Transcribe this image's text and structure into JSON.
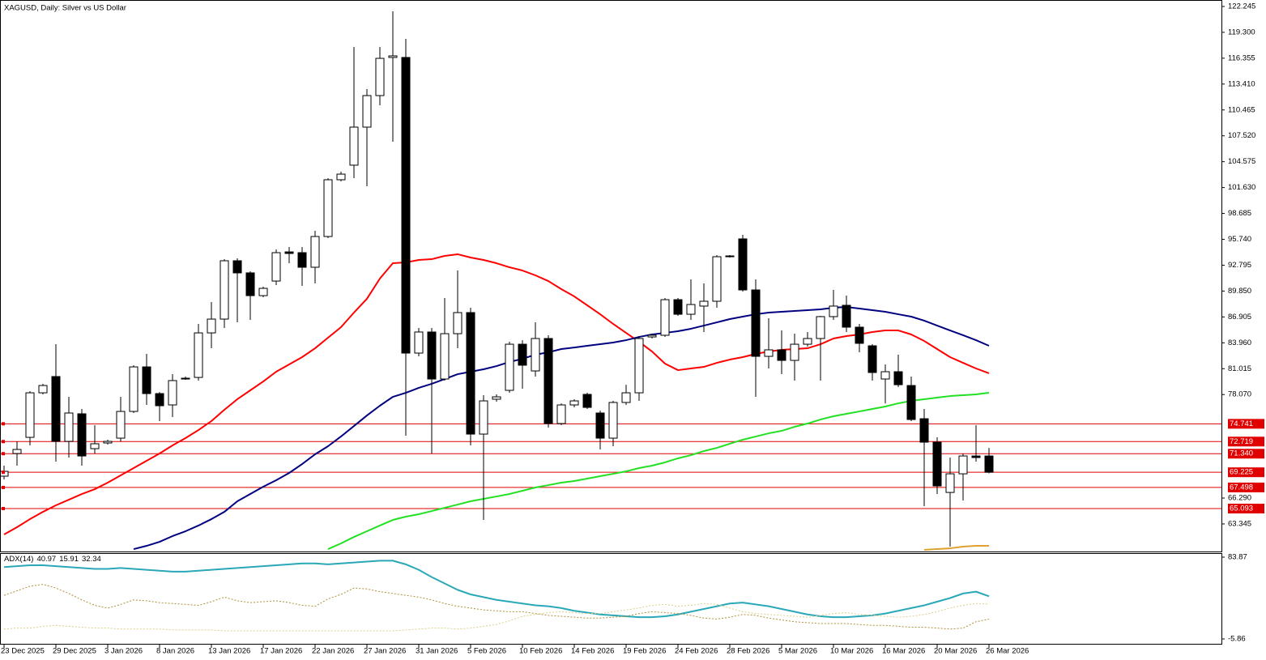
{
  "chart_data": [
    {
      "type": "candlestick",
      "title": "XAGUSD, Daily:  Silver vs US Dollar",
      "categories": [
        "23 Dec 2025",
        null,
        null,
        null,
        "29 Dec 2025",
        null,
        null,
        null,
        "3 Jan 2026",
        null,
        null,
        null,
        "8 Jan 2026",
        null,
        null,
        null,
        "13 Jan 2026",
        null,
        null,
        null,
        "17 Jan 2026",
        null,
        null,
        null,
        "22 Jan 2026",
        null,
        null,
        null,
        "27 Jan 2026",
        null,
        null,
        null,
        "31 Jan 2026",
        null,
        null,
        null,
        "5 Feb 2026",
        null,
        null,
        null,
        "10 Feb 2026",
        null,
        null,
        null,
        "14 Feb 2026",
        null,
        null,
        null,
        "19 Feb 2026",
        null,
        null,
        null,
        "24 Feb 2026",
        null,
        null,
        null,
        "28 Feb 2026",
        null,
        null,
        null,
        "5 Mar 2026",
        null,
        null,
        null,
        "10 Mar 2026",
        null,
        null,
        null,
        "16 Mar 2026",
        null,
        null,
        null,
        "20 Mar 2026",
        null,
        null,
        null,
        "26 Mar 2026"
      ],
      "open": [
        68.78,
        71.36,
        73.2,
        78.27,
        80.12,
        72.74,
        75.88,
        71.91,
        72.56,
        73.11,
        76.15,
        81.22,
        78.18,
        76.89,
        79.84,
        80.02,
        85.09,
        86.66,
        93.3,
        91.92,
        89.33,
        90.99,
        94.31,
        94.22,
        92.56,
        96.06,
        102.52,
        104.18,
        108.51,
        112.1,
        116.44,
        116.44,
        82.79,
        85.19,
        79.84,
        85.0,
        87.4,
        73.57,
        77.54,
        78.55,
        83.8,
        80.76,
        84.45,
        74.77,
        76.89,
        78.09,
        75.97,
        73.11,
        77.17,
        78.27,
        84.63,
        84.82,
        88.87,
        87.21,
        88.14,
        88.69,
        93.85,
        95.79,
        89.98,
        82.42,
        83.16,
        81.96,
        83.8,
        84.45,
        86.94,
        88.23,
        85.74,
        83.62,
        79.84,
        80.67,
        79.1,
        75.32,
        72.65,
        66.93,
        69.05,
        71.08,
        71.08
      ],
      "high": [
        69.98,
        72.74,
        78.46,
        79.29,
        83.8,
        77.81,
        76.43,
        74.59,
        72.93,
        77.81,
        81.41,
        82.7,
        78.36,
        80.39,
        80.12,
        86.11,
        88.6,
        93.48,
        93.58,
        92.1,
        90.35,
        94.59,
        94.87,
        94.87,
        96.71,
        102.7,
        103.44,
        117.63,
        112.84,
        117.63,
        121.69,
        118.56,
        85.65,
        85.65,
        89.06,
        92.19,
        87.95,
        78.0,
        78.09,
        84.08,
        84.26,
        86.29,
        84.82,
        77.07,
        77.54,
        78.27,
        76.24,
        77.35,
        79.19,
        84.73,
        85.0,
        89.06,
        89.06,
        91.18,
        90.72,
        93.94,
        93.94,
        96.25,
        91.18,
        86.75,
        85.37,
        85.0,
        85.19,
        87.03,
        89.98,
        89.33,
        86.11,
        83.8,
        81.5,
        82.61,
        80.12,
        76.43,
        73.2,
        70.9,
        71.36,
        74.59,
        72.0
      ],
      "low": [
        68.41,
        69.98,
        72.28,
        78.09,
        70.44,
        70.9,
        69.98,
        71.36,
        72.37,
        72.74,
        75.97,
        76.89,
        75.05,
        75.51,
        79.75,
        79.66,
        83.34,
        85.65,
        86.29,
        86.57,
        89.15,
        90.53,
        93.02,
        90.44,
        90.72,
        95.88,
        102.33,
        102.7,
        101.78,
        111.0,
        106.85,
        73.39,
        82.42,
        71.36,
        79.66,
        83.34,
        72.28,
        63.8,
        77.26,
        78.27,
        78.73,
        80.12,
        74.31,
        74.59,
        76.61,
        76.43,
        71.82,
        72.19,
        76.89,
        77.35,
        84.45,
        84.63,
        87.03,
        86.57,
        85.19,
        87.95,
        93.67,
        89.8,
        77.81,
        81.04,
        80.39,
        79.66,
        83.53,
        79.66,
        86.57,
        85.19,
        82.88,
        79.66,
        77.07,
        78.92,
        75.05,
        65.37,
        66.75,
        60.76,
        66.01,
        70.44,
        69.1
      ],
      "close": [
        69.33,
        71.82,
        78.27,
        79.1,
        72.74,
        75.97,
        71.08,
        72.47,
        72.74,
        76.15,
        81.22,
        78.18,
        76.8,
        79.66,
        79.93,
        85.09,
        86.66,
        93.3,
        91.92,
        89.33,
        90.16,
        94.22,
        94.13,
        92.56,
        96.06,
        102.52,
        103.16,
        108.51,
        112.1,
        116.34,
        116.62,
        82.79,
        85.19,
        79.84,
        85.0,
        87.4,
        73.57,
        77.35,
        77.81,
        83.8,
        81.41,
        84.45,
        74.77,
        76.89,
        77.35,
        76.61,
        73.11,
        77.17,
        78.27,
        84.45,
        84.82,
        88.87,
        87.21,
        88.32,
        88.69,
        93.76,
        93.76,
        89.98,
        82.42,
        83.16,
        81.96,
        83.8,
        84.45,
        86.94,
        88.14,
        85.74,
        83.9,
        80.58,
        80.67,
        79.19,
        75.23,
        72.65,
        67.67,
        69.05,
        71.08,
        70.9,
        69.23
      ],
      "up_color": "#ffffff",
      "down_color": "#000000",
      "wick_color": "#000000",
      "lines": [
        {
          "color": "#ff0000",
          "values": [
            62.14,
            62.97,
            63.89,
            64.72,
            65.46,
            66.1,
            66.75,
            67.3,
            68.04,
            68.87,
            69.7,
            70.53,
            71.36,
            72.28,
            73.11,
            74.03,
            75.05,
            76.34,
            77.54,
            78.55,
            79.56,
            80.67,
            81.5,
            82.33,
            83.34,
            84.54,
            85.74,
            87.4,
            88.97,
            91.27,
            93.02,
            93.11,
            93.39,
            93.48,
            93.85,
            94.04,
            93.67,
            93.39,
            93.02,
            92.56,
            92.19,
            91.64,
            90.99,
            90.07,
            89.24,
            88.23,
            87.21,
            86.11,
            85.09,
            84.08,
            82.97,
            81.59,
            80.85,
            81.04,
            81.22,
            81.68,
            82.05,
            82.33,
            82.7,
            82.97,
            83.16,
            83.25,
            83.34,
            83.8,
            84.45,
            84.73,
            84.91,
            85.19,
            85.37,
            85.37,
            84.91,
            84.17,
            83.25,
            82.33,
            81.68,
            81.04,
            80.49
          ]
        },
        {
          "color": "#000080",
          "values": [
            null,
            null,
            null,
            null,
            null,
            null,
            null,
            null,
            null,
            null,
            60.48,
            60.85,
            61.31,
            61.96,
            62.51,
            63.16,
            63.89,
            64.72,
            65.92,
            66.75,
            67.58,
            68.32,
            69.15,
            70.16,
            71.27,
            72.19,
            73.3,
            74.49,
            75.69,
            76.8,
            77.81,
            78.27,
            78.83,
            79.29,
            79.84,
            80.39,
            80.67,
            80.95,
            81.31,
            81.78,
            82.14,
            82.61,
            82.88,
            83.25,
            83.43,
            83.62,
            83.8,
            83.99,
            84.26,
            84.63,
            84.91,
            85.09,
            85.28,
            85.56,
            85.92,
            86.29,
            86.66,
            86.94,
            87.21,
            87.4,
            87.49,
            87.58,
            87.68,
            87.77,
            87.95,
            88.04,
            87.86,
            87.68,
            87.49,
            87.21,
            86.94,
            86.48,
            85.92,
            85.37,
            84.82,
            84.26,
            83.62
          ]
        },
        {
          "color": "#22e022",
          "values": [
            null,
            null,
            null,
            null,
            null,
            null,
            null,
            null,
            null,
            null,
            null,
            null,
            null,
            null,
            null,
            null,
            null,
            null,
            null,
            null,
            null,
            null,
            null,
            null,
            null,
            60.48,
            61.13,
            61.86,
            62.51,
            63.16,
            63.8,
            64.17,
            64.45,
            64.81,
            65.18,
            65.55,
            65.92,
            66.2,
            66.47,
            66.75,
            67.12,
            67.49,
            67.76,
            68.04,
            68.23,
            68.5,
            68.78,
            69.05,
            69.33,
            69.7,
            69.98,
            70.35,
            70.81,
            71.17,
            71.64,
            72.0,
            72.47,
            72.93,
            73.29,
            73.66,
            73.94,
            74.4,
            74.77,
            75.23,
            75.6,
            75.88,
            76.15,
            76.43,
            76.71,
            77.07,
            77.35,
            77.54,
            77.72,
            77.9,
            78.0,
            78.09,
            78.27
          ]
        },
        {
          "color": "#e0a030",
          "values": [
            null,
            null,
            null,
            null,
            null,
            null,
            null,
            null,
            null,
            null,
            null,
            null,
            null,
            null,
            null,
            null,
            null,
            null,
            null,
            null,
            null,
            null,
            null,
            null,
            null,
            null,
            null,
            null,
            null,
            null,
            null,
            null,
            null,
            null,
            null,
            null,
            null,
            null,
            null,
            null,
            null,
            null,
            null,
            null,
            null,
            null,
            null,
            null,
            null,
            null,
            null,
            null,
            null,
            null,
            null,
            null,
            null,
            null,
            null,
            null,
            null,
            null,
            null,
            null,
            null,
            null,
            null,
            null,
            null,
            null,
            null,
            60.39,
            60.48,
            60.57,
            60.76,
            60.85,
            60.85
          ]
        }
      ],
      "hlines": [
        74.741,
        72.719,
        {
          "value": 71.34,
          "label": "71.340"
        },
        69.225,
        67.498,
        65.093
      ],
      "hline_color": "#e00000",
      "ylim": [
        60.3,
        122.98
      ],
      "yticks": [
        122.245,
        {
          "value": 119.3,
          "label": "119.300"
        },
        116.355,
        {
          "value": 113.41,
          "label": "113.410"
        },
        110.465,
        {
          "value": 107.52,
          "label": "107.520"
        },
        104.575,
        {
          "value": 101.63,
          "label": "101.630"
        },
        98.685,
        {
          "value": 95.74,
          "label": "95.740"
        },
        92.795,
        {
          "value": 89.85,
          "label": "89.850"
        },
        86.905,
        {
          "value": 83.96,
          "label": "83.960"
        },
        81.015,
        {
          "value": 78.07,
          "label": "78.070"
        },
        {
          "value": 66.29,
          "label": "66.290"
        },
        63.345
      ]
    },
    {
      "type": "line",
      "title": "ADX(14)",
      "legend_values": [
        40.97,
        15.91,
        32.34
      ],
      "series": [
        {
          "color": "#2aa8b8",
          "style": "solid",
          "values": [
            73,
            74,
            75,
            75,
            74,
            73,
            72,
            71,
            71,
            72,
            71,
            70,
            69,
            68,
            68,
            69,
            70,
            71,
            72,
            73,
            74,
            75,
            76,
            77,
            77,
            76,
            77,
            78,
            79,
            80,
            80,
            76,
            70,
            62,
            55,
            48,
            43,
            40,
            37,
            35,
            33,
            31,
            30,
            28,
            25,
            23,
            21,
            20,
            19,
            18,
            18,
            19,
            21,
            24,
            27,
            30,
            33,
            34,
            32,
            30,
            27,
            24,
            21,
            19,
            18,
            18,
            19,
            20,
            22,
            25,
            28,
            31,
            35,
            39,
            44,
            46,
            40.97
          ]
        },
        {
          "color": "#b0903a",
          "style": "dotted",
          "values": [
            42,
            47,
            52,
            54,
            50,
            44,
            37,
            31,
            28,
            32,
            37,
            36,
            34,
            33,
            32,
            31,
            35,
            40,
            36,
            34,
            35,
            36,
            34,
            31,
            30,
            38,
            43,
            50,
            49,
            46,
            44,
            42,
            40,
            37,
            33,
            30,
            28,
            26,
            25,
            24,
            24,
            22,
            20,
            19,
            18,
            17,
            17,
            18,
            19,
            22,
            24,
            23,
            22,
            20,
            17,
            16,
            18,
            21,
            20,
            17,
            15,
            13,
            12,
            11,
            11,
            11,
            10,
            9,
            9,
            8,
            7,
            7,
            6,
            5,
            6,
            13,
            15.91
          ]
        },
        {
          "color": "#d8cf8a",
          "style": "dotted",
          "values": [
            5,
            6,
            6,
            8,
            9,
            8,
            7,
            6,
            6,
            5,
            5,
            5,
            5,
            4,
            4,
            4,
            4,
            3,
            3,
            3,
            3,
            3,
            3,
            3,
            3,
            3,
            3,
            3,
            3,
            3,
            3,
            4,
            5,
            6,
            6,
            5,
            6,
            8,
            10,
            14,
            19,
            21,
            23,
            24,
            23,
            22,
            22,
            24,
            26,
            28,
            31,
            32,
            30,
            31,
            33,
            32,
            28,
            24,
            22,
            21,
            20,
            19,
            18,
            20,
            22,
            23,
            21,
            20,
            19,
            18,
            19,
            21,
            24,
            28,
            31,
            33,
            32.34
          ]
        }
      ],
      "ylim": [
        -11.19,
        87.42
      ],
      "yticks": [
        83.87,
        -5.86
      ]
    }
  ]
}
